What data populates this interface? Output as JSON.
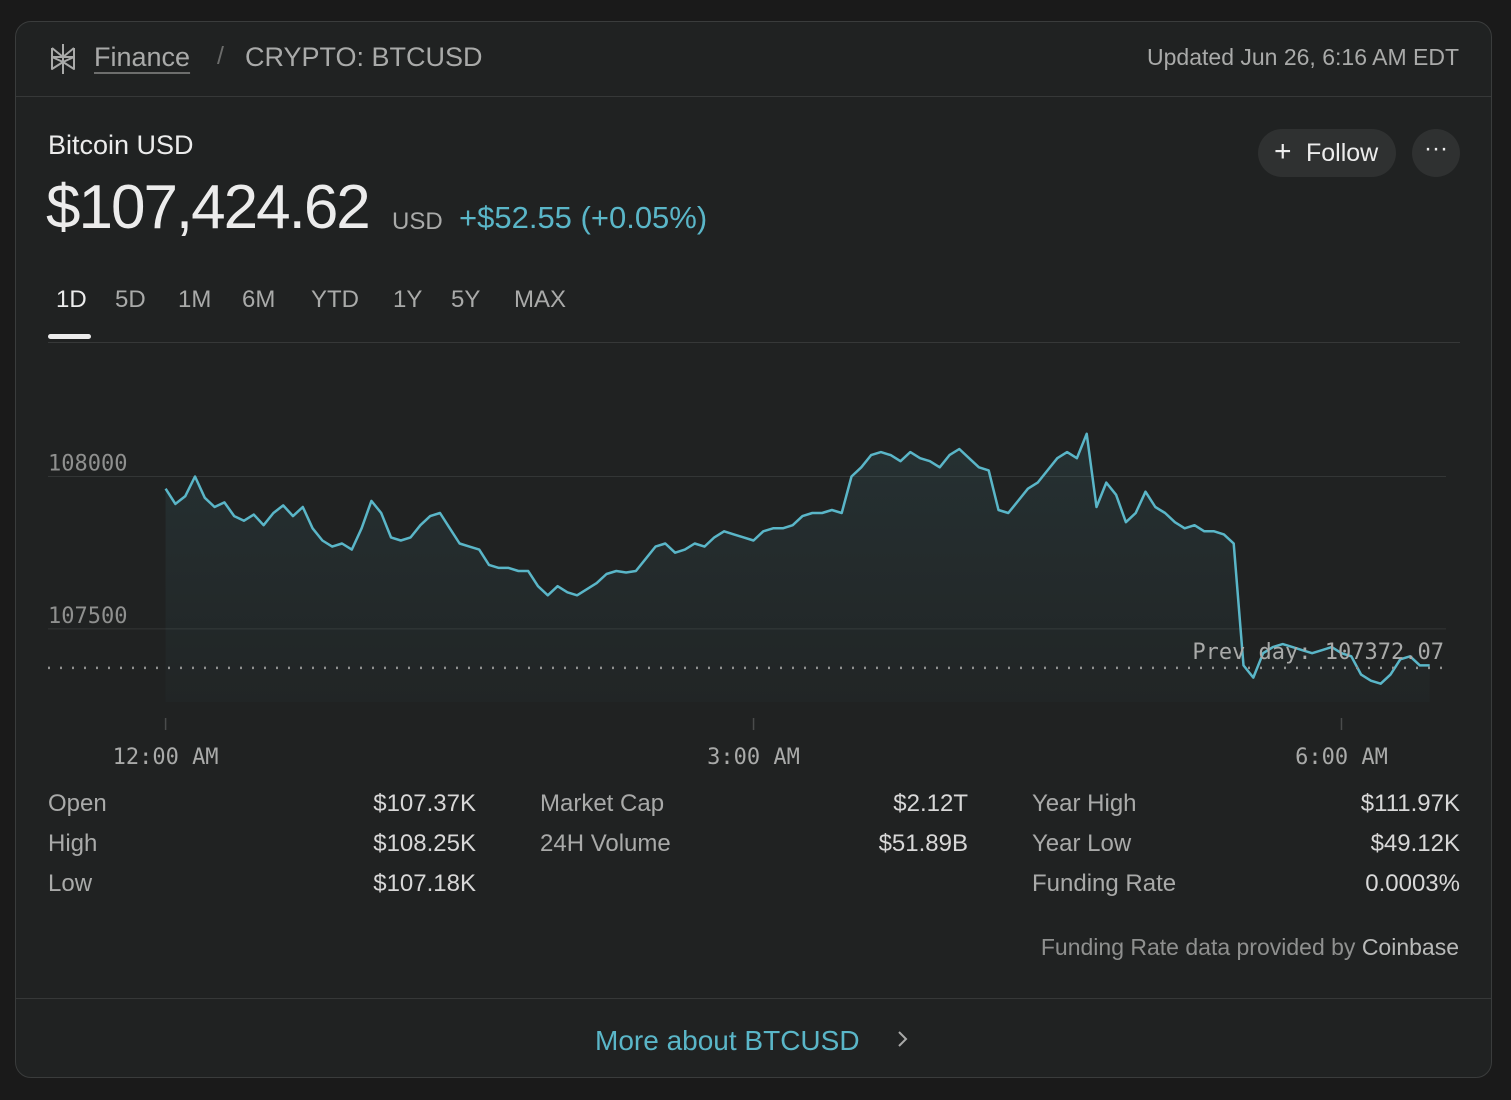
{
  "header": {
    "breadcrumb_root": "Finance",
    "breadcrumb_sep": "/",
    "breadcrumb_symbol": "CRYPTO: BTCUSD",
    "updated": "Updated Jun 26, 6:16 AM EDT"
  },
  "quote": {
    "name": "Bitcoin USD",
    "price": "$107,424.62",
    "currency": "USD",
    "change": "+$52.55 (+0.05%)",
    "follow_label": "Follow",
    "more_label": "···"
  },
  "tabs": [
    {
      "label": "1D",
      "active": true
    },
    {
      "label": "5D",
      "active": false
    },
    {
      "label": "1M",
      "active": false
    },
    {
      "label": "6M",
      "active": false
    },
    {
      "label": "YTD",
      "active": false
    },
    {
      "label": "1Y",
      "active": false
    },
    {
      "label": "5Y",
      "active": false
    },
    {
      "label": "MAX",
      "active": false
    }
  ],
  "chart_data": {
    "type": "line",
    "line_color": "#5ab6c8",
    "fill": true,
    "y_ticks": [
      107500,
      108000
    ],
    "x_ticks": [
      {
        "label": "12:00 AM",
        "t": 0
      },
      {
        "label": "3:00 AM",
        "t": 180
      },
      {
        "label": "6:00 AM",
        "t": 360
      }
    ],
    "ylim": [
      107260,
      108310
    ],
    "xlim": [
      -36,
      392
    ],
    "reference": {
      "label": "Prev day: 107372.07",
      "value": 107372.07
    },
    "points": [
      [
        0,
        107960
      ],
      [
        3,
        107910
      ],
      [
        6,
        107935
      ],
      [
        9,
        108000
      ],
      [
        12,
        107930
      ],
      [
        15,
        107900
      ],
      [
        18,
        107915
      ],
      [
        21,
        107870
      ],
      [
        24,
        107855
      ],
      [
        27,
        107875
      ],
      [
        30,
        107840
      ],
      [
        33,
        107880
      ],
      [
        36,
        107905
      ],
      [
        39,
        107870
      ],
      [
        42,
        107900
      ],
      [
        45,
        107830
      ],
      [
        48,
        107790
      ],
      [
        51,
        107770
      ],
      [
        54,
        107780
      ],
      [
        57,
        107760
      ],
      [
        60,
        107830
      ],
      [
        63,
        107920
      ],
      [
        66,
        107880
      ],
      [
        69,
        107800
      ],
      [
        72,
        107790
      ],
      [
        75,
        107800
      ],
      [
        78,
        107840
      ],
      [
        81,
        107870
      ],
      [
        84,
        107880
      ],
      [
        87,
        107830
      ],
      [
        90,
        107780
      ],
      [
        93,
        107770
      ],
      [
        96,
        107760
      ],
      [
        99,
        107710
      ],
      [
        102,
        107700
      ],
      [
        105,
        107700
      ],
      [
        108,
        107690
      ],
      [
        111,
        107690
      ],
      [
        114,
        107640
      ],
      [
        117,
        107610
      ],
      [
        120,
        107640
      ],
      [
        123,
        107620
      ],
      [
        126,
        107610
      ],
      [
        129,
        107630
      ],
      [
        132,
        107650
      ],
      [
        135,
        107680
      ],
      [
        138,
        107690
      ],
      [
        141,
        107685
      ],
      [
        144,
        107690
      ],
      [
        147,
        107730
      ],
      [
        150,
        107770
      ],
      [
        153,
        107780
      ],
      [
        156,
        107750
      ],
      [
        159,
        107760
      ],
      [
        162,
        107780
      ],
      [
        165,
        107770
      ],
      [
        168,
        107800
      ],
      [
        171,
        107820
      ],
      [
        174,
        107810
      ],
      [
        177,
        107800
      ],
      [
        180,
        107790
      ],
      [
        183,
        107820
      ],
      [
        186,
        107830
      ],
      [
        189,
        107830
      ],
      [
        192,
        107840
      ],
      [
        195,
        107870
      ],
      [
        198,
        107880
      ],
      [
        201,
        107880
      ],
      [
        204,
        107890
      ],
      [
        207,
        107880
      ],
      [
        210,
        108000
      ],
      [
        213,
        108030
      ],
      [
        216,
        108070
      ],
      [
        219,
        108080
      ],
      [
        222,
        108070
      ],
      [
        225,
        108050
      ],
      [
        228,
        108080
      ],
      [
        231,
        108060
      ],
      [
        234,
        108050
      ],
      [
        237,
        108030
      ],
      [
        240,
        108070
      ],
      [
        243,
        108090
      ],
      [
        246,
        108060
      ],
      [
        249,
        108030
      ],
      [
        252,
        108020
      ],
      [
        255,
        107890
      ],
      [
        258,
        107880
      ],
      [
        261,
        107920
      ],
      [
        264,
        107960
      ],
      [
        267,
        107980
      ],
      [
        270,
        108020
      ],
      [
        273,
        108060
      ],
      [
        276,
        108080
      ],
      [
        279,
        108060
      ],
      [
        282,
        108140
      ],
      [
        285,
        107900
      ],
      [
        288,
        107980
      ],
      [
        291,
        107940
      ],
      [
        294,
        107850
      ],
      [
        297,
        107880
      ],
      [
        300,
        107950
      ],
      [
        303,
        107900
      ],
      [
        306,
        107880
      ],
      [
        309,
        107850
      ],
      [
        312,
        107830
      ],
      [
        315,
        107840
      ],
      [
        318,
        107820
      ],
      [
        321,
        107820
      ],
      [
        324,
        107810
      ],
      [
        327,
        107780
      ],
      [
        330,
        107380
      ],
      [
        333,
        107340
      ],
      [
        336,
        107420
      ],
      [
        339,
        107440
      ],
      [
        342,
        107450
      ],
      [
        345,
        107440
      ],
      [
        348,
        107430
      ],
      [
        351,
        107420
      ],
      [
        354,
        107430
      ],
      [
        357,
        107440
      ],
      [
        360,
        107420
      ],
      [
        363,
        107410
      ],
      [
        366,
        107350
      ],
      [
        369,
        107330
      ],
      [
        372,
        107320
      ],
      [
        375,
        107350
      ],
      [
        378,
        107400
      ],
      [
        381,
        107410
      ],
      [
        384,
        107380
      ],
      [
        387,
        107380
      ]
    ]
  },
  "stats": [
    [
      {
        "k": "Open",
        "v": "$107.37K"
      },
      {
        "k": "High",
        "v": "$108.25K"
      },
      {
        "k": "Low",
        "v": "$107.18K"
      }
    ],
    [
      {
        "k": "Market Cap",
        "v": "$2.12T"
      },
      {
        "k": "24H Volume",
        "v": "$51.89B"
      }
    ],
    [
      {
        "k": "Year High",
        "v": "$111.97K"
      },
      {
        "k": "Year Low",
        "v": "$49.12K"
      },
      {
        "k": "Funding Rate",
        "v": "0.0003%"
      }
    ]
  ],
  "attribution": {
    "prefix": "Funding Rate data provided by",
    "brand": "Coinbase"
  },
  "footer": {
    "more_label": "More about BTCUSD"
  }
}
